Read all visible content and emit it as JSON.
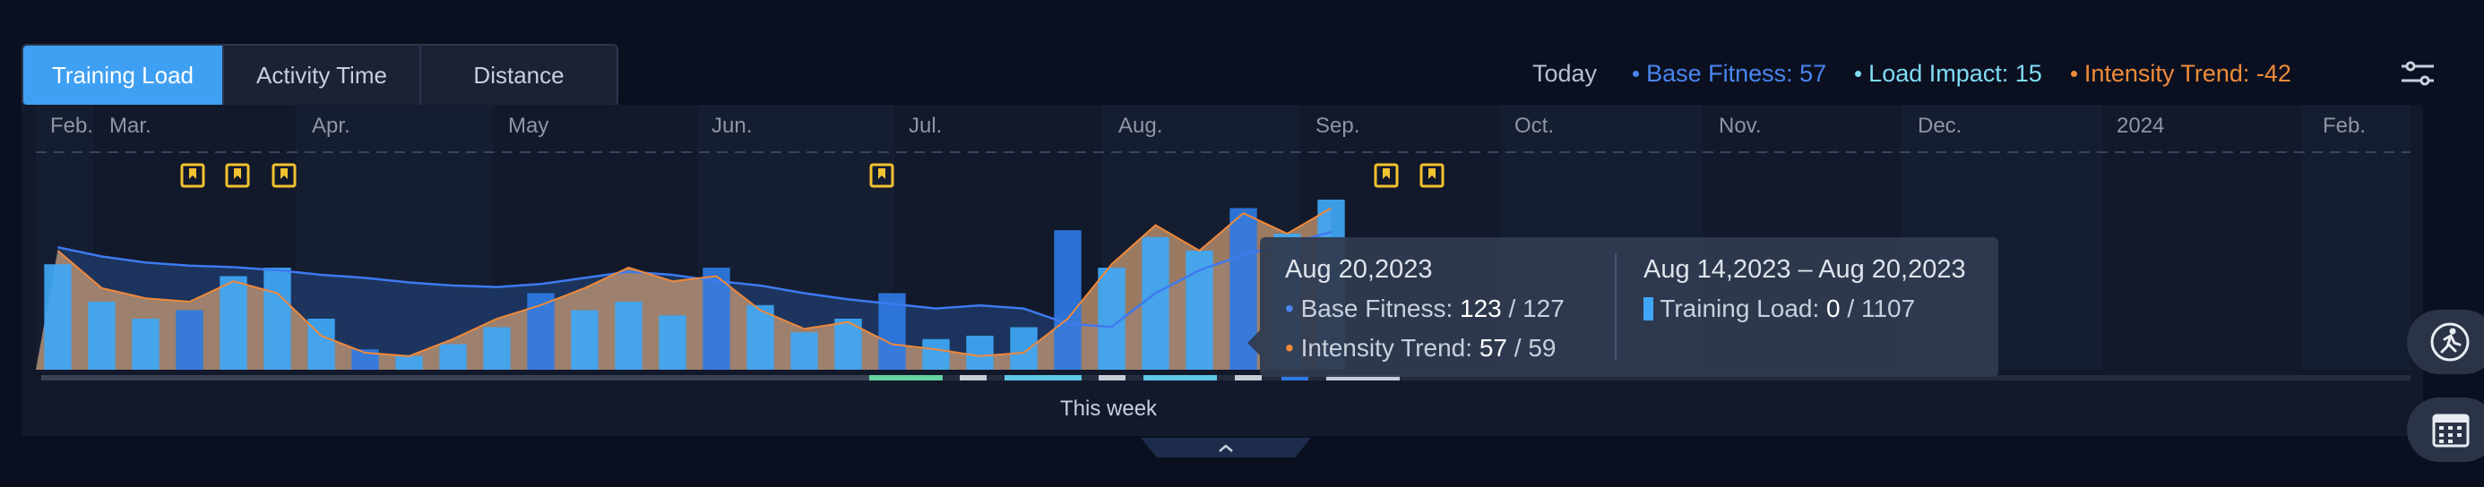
{
  "tabs": [
    {
      "label": "Training Load",
      "active": true
    },
    {
      "label": "Activity Time",
      "active": false
    },
    {
      "label": "Distance",
      "active": false
    }
  ],
  "legend": {
    "today": "Today",
    "items": [
      {
        "label": "Base Fitness: 57",
        "color": "#4a86f0"
      },
      {
        "label": "Load Impact: 15",
        "color": "#7fdcf5"
      },
      {
        "label": "Intensity Trend: -42",
        "color": "#f08c3a"
      }
    ]
  },
  "months": [
    "Feb.",
    "Mar.",
    "Apr.",
    "May",
    "Jun.",
    "Jul.",
    "Aug.",
    "Sep.",
    "Oct.",
    "Nov.",
    "Dec.",
    "2024",
    "Feb."
  ],
  "tooltip": {
    "date": "Aug 20,2023",
    "base_label": "Base Fitness:",
    "base_value": "123",
    "base_max": "127",
    "intensity_label": "Intensity Trend:",
    "intensity_value": "57",
    "intensity_max": "59",
    "range": "Aug 14,2023 – Aug 20,2023",
    "load_label": "Training Load:",
    "load_value": "0",
    "load_max": "1107"
  },
  "this_week": "This week",
  "colors": {
    "bar": "#3fa7f5",
    "bar_dark": "#2f7ae3",
    "orange_fill": "#c89a73",
    "base_line": "#3d7af0",
    "intensity_line": "#f0893a",
    "marker": "#f2c230"
  },
  "icons": [
    "filter-sliders-icon",
    "bookmark-icon",
    "running-icon",
    "calendar-icon",
    "chevron-up-icon"
  ],
  "chart_data": {
    "type": "bar",
    "title": "",
    "xlabel": "",
    "ylabel": "",
    "weekly_load": [
      0.62,
      0.4,
      0.3,
      0.35,
      0.55,
      0.6,
      0.3,
      0.12,
      0.08,
      0.15,
      0.25,
      0.45,
      0.35,
      0.4,
      0.32,
      0.6,
      0.38,
      0.22,
      0.3,
      0.45,
      0.18,
      0.2,
      0.25,
      0.82,
      0.6,
      0.78,
      0.7,
      0.95,
      0.8,
      1.0
    ],
    "base_fitness": [
      0.8,
      0.74,
      0.7,
      0.68,
      0.67,
      0.65,
      0.62,
      0.6,
      0.57,
      0.55,
      0.54,
      0.56,
      0.6,
      0.64,
      0.62,
      0.58,
      0.55,
      0.5,
      0.46,
      0.43,
      0.4,
      0.42,
      0.4,
      0.3,
      0.28,
      0.5,
      0.65,
      0.75,
      0.82,
      0.9
    ],
    "intensity_trend": [
      0.7,
      0.48,
      0.42,
      0.4,
      0.52,
      0.45,
      0.2,
      0.1,
      0.08,
      0.18,
      0.3,
      0.38,
      0.48,
      0.6,
      0.52,
      0.55,
      0.35,
      0.24,
      0.28,
      0.15,
      0.12,
      0.08,
      0.1,
      0.3,
      0.62,
      0.85,
      0.7,
      0.92,
      0.8,
      0.95
    ]
  }
}
